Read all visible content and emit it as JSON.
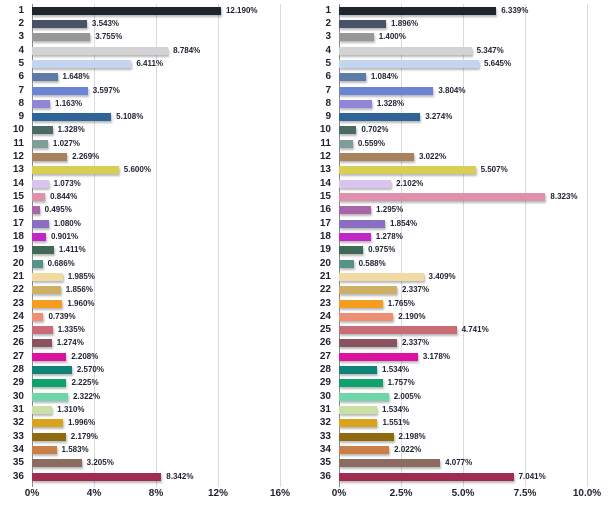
{
  "figure": {
    "background_color": "#ffffff",
    "text_color": "#1e2230",
    "gridline_color": "#d9d9de",
    "axis_line_color": "#8b8b94"
  },
  "chart_data": [
    {
      "type": "bar",
      "orientation": "horizontal",
      "title": "",
      "xlabel": "",
      "ylabel": "",
      "grid": true,
      "legend": false,
      "value_suffix": "%",
      "value_decimals": 3,
      "xlim": [
        0,
        16
      ],
      "xticks": [
        {
          "value": 0,
          "label": "0%"
        },
        {
          "value": 4,
          "label": "4%"
        },
        {
          "value": 8,
          "label": "8%"
        },
        {
          "value": 12,
          "label": "12%"
        },
        {
          "value": 16,
          "label": "16%"
        }
      ],
      "categories": [
        "1",
        "2",
        "3",
        "4",
        "5",
        "6",
        "7",
        "8",
        "9",
        "10",
        "11",
        "12",
        "13",
        "14",
        "15",
        "16",
        "17",
        "18",
        "19",
        "20",
        "21",
        "22",
        "23",
        "24",
        "25",
        "26",
        "27",
        "28",
        "29",
        "30",
        "31",
        "32",
        "33",
        "34",
        "35",
        "36"
      ],
      "values": [
        12.19,
        3.543,
        3.755,
        8.784,
        6.411,
        1.648,
        3.597,
        1.163,
        5.108,
        1.328,
        1.027,
        2.269,
        5.6,
        1.073,
        0.844,
        0.495,
        1.08,
        0.901,
        1.411,
        0.686,
        1.985,
        1.856,
        1.96,
        0.739,
        1.335,
        1.274,
        2.208,
        2.57,
        2.225,
        2.322,
        1.31,
        1.996,
        2.179,
        1.583,
        3.205,
        8.342
      ],
      "value_labels": [
        "12.190%",
        "3.543%",
        "3.755%",
        "8.784%",
        "6.411%",
        "1.648%",
        "3.597%",
        "1.163%",
        "5.108%",
        "1.328%",
        "1.027%",
        "2.269%",
        "5.600%",
        "1.073%",
        "0.844%",
        "0.495%",
        "1.080%",
        "0.901%",
        "1.411%",
        "0.686%",
        "1.985%",
        "1.856%",
        "1.960%",
        "0.739%",
        "1.335%",
        "1.274%",
        "2.208%",
        "2.570%",
        "2.225%",
        "2.322%",
        "1.310%",
        "1.996%",
        "2.179%",
        "1.583%",
        "3.205%",
        "8.342%"
      ],
      "bar_colors": [
        "#20242f",
        "#485269",
        "#97979a",
        "#d3d3d5",
        "#c2d6ef",
        "#5e7ba7",
        "#6b85d4",
        "#9086d8",
        "#2f6496",
        "#4c6a63",
        "#7f9e9a",
        "#a8825c",
        "#d8cd55",
        "#d9c4f1",
        "#de90ac",
        "#aa64aa",
        "#8a6ec4",
        "#c226c9",
        "#3f6a56",
        "#579488",
        "#f1daa3",
        "#cfae66",
        "#f49d21",
        "#ee8f74",
        "#c96c78",
        "#8a535f",
        "#dc12a0",
        "#0e8478",
        "#0fa26c",
        "#6fd6aa",
        "#c9e0a7",
        "#d8a41d",
        "#8e6a10",
        "#ca7f48",
        "#8c6c60",
        "#a12b51"
      ]
    },
    {
      "type": "bar",
      "orientation": "horizontal",
      "title": "",
      "xlabel": "",
      "ylabel": "",
      "grid": true,
      "legend": false,
      "value_suffix": "%",
      "value_decimals": 3,
      "xlim": [
        0,
        10
      ],
      "xticks": [
        {
          "value": 0,
          "label": "0%"
        },
        {
          "value": 2.5,
          "label": "2.5%"
        },
        {
          "value": 5,
          "label": "5.0%"
        },
        {
          "value": 7.5,
          "label": "7.5%"
        },
        {
          "value": 10,
          "label": "10.0%"
        }
      ],
      "categories": [
        "1",
        "2",
        "3",
        "4",
        "5",
        "6",
        "7",
        "8",
        "9",
        "10",
        "11",
        "12",
        "13",
        "14",
        "15",
        "16",
        "17",
        "18",
        "19",
        "20",
        "21",
        "22",
        "23",
        "24",
        "25",
        "26",
        "27",
        "28",
        "29",
        "30",
        "31",
        "32",
        "33",
        "34",
        "35",
        "36"
      ],
      "values": [
        6.339,
        1.896,
        1.4,
        5.347,
        5.645,
        1.084,
        3.804,
        1.328,
        3.274,
        0.702,
        0.559,
        3.022,
        5.507,
        2.102,
        8.323,
        1.295,
        1.854,
        1.278,
        0.975,
        0.588,
        3.409,
        2.337,
        1.765,
        2.19,
        4.741,
        2.337,
        3.178,
        1.534,
        1.757,
        2.005,
        1.534,
        1.551,
        2.198,
        2.022,
        4.077,
        7.041
      ],
      "value_labels": [
        "6.339%",
        "1.896%",
        "1.400%",
        "5.347%",
        "5.645%",
        "1.084%",
        "3.804%",
        "1.328%",
        "3.274%",
        "0.702%",
        "0.559%",
        "3.022%",
        "5.507%",
        "2.102%",
        "8.323%",
        "1.295%",
        "1.854%",
        "1.278%",
        "0.975%",
        "0.588%",
        "3.409%",
        "2.337%",
        "1.765%",
        "2.190%",
        "4.741%",
        "2.337%",
        "3.178%",
        "1.534%",
        "1.757%",
        "2.005%",
        "1.534%",
        "1.551%",
        "2.198%",
        "2.022%",
        "4.077%",
        "7.041%"
      ],
      "bar_colors": [
        "#20242f",
        "#485269",
        "#97979a",
        "#d3d3d5",
        "#c2d6ef",
        "#5e7ba7",
        "#6b85d4",
        "#9086d8",
        "#2f6496",
        "#4c6a63",
        "#7f9e9a",
        "#a8825c",
        "#d8cd55",
        "#d9c4f1",
        "#de90ac",
        "#aa64aa",
        "#8a6ec4",
        "#c226c9",
        "#3f6a56",
        "#579488",
        "#f1daa3",
        "#cfae66",
        "#f49d21",
        "#ee8f74",
        "#c96c78",
        "#8a535f",
        "#dc12a0",
        "#0e8478",
        "#0fa26c",
        "#6fd6aa",
        "#c9e0a7",
        "#d8a41d",
        "#8e6a10",
        "#ca7f48",
        "#8c6c60",
        "#a12b51"
      ]
    }
  ]
}
